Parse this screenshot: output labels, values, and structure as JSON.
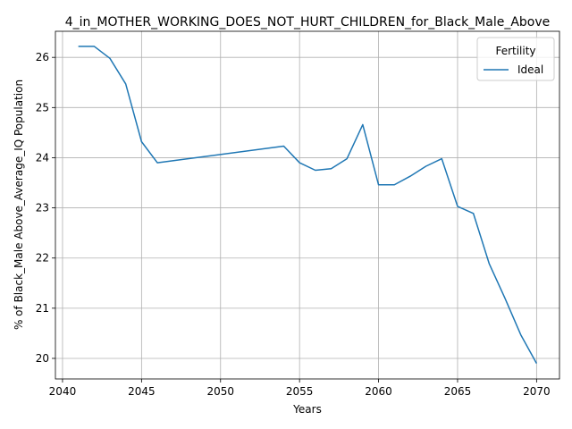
{
  "chart_data": {
    "type": "line",
    "title": "4_in_MOTHER_WORKING_DOES_NOT_HURT_CHILDREN_for_Black_Male_Above",
    "xlabel": "Years",
    "ylabel": "% of Black_Male Above_Average_IQ Population",
    "xlim": [
      2039.55,
      2071.45
    ],
    "ylim": [
      19.59,
      26.52
    ],
    "xticks": [
      2040,
      2045,
      2050,
      2055,
      2060,
      2065,
      2070
    ],
    "yticks": [
      20,
      21,
      22,
      23,
      24,
      25,
      26
    ],
    "grid": true,
    "legend": {
      "title": "Fertility",
      "placement": "top-right"
    },
    "series": [
      {
        "name": "Ideal",
        "color": "#1f77b4",
        "x": [
          2041,
          2042,
          2043,
          2044,
          2045,
          2046,
          2054,
          2055,
          2056,
          2057,
          2058,
          2059,
          2060,
          2061,
          2062,
          2063,
          2064,
          2065,
          2066,
          2067,
          2068,
          2069,
          2070
        ],
        "y": [
          26.22,
          26.22,
          25.98,
          25.47,
          24.32,
          23.9,
          24.23,
          23.9,
          23.75,
          23.78,
          23.98,
          24.66,
          23.46,
          23.46,
          23.63,
          23.83,
          23.98,
          23.03,
          22.89,
          21.89,
          21.2,
          20.47,
          19.9
        ]
      }
    ]
  }
}
